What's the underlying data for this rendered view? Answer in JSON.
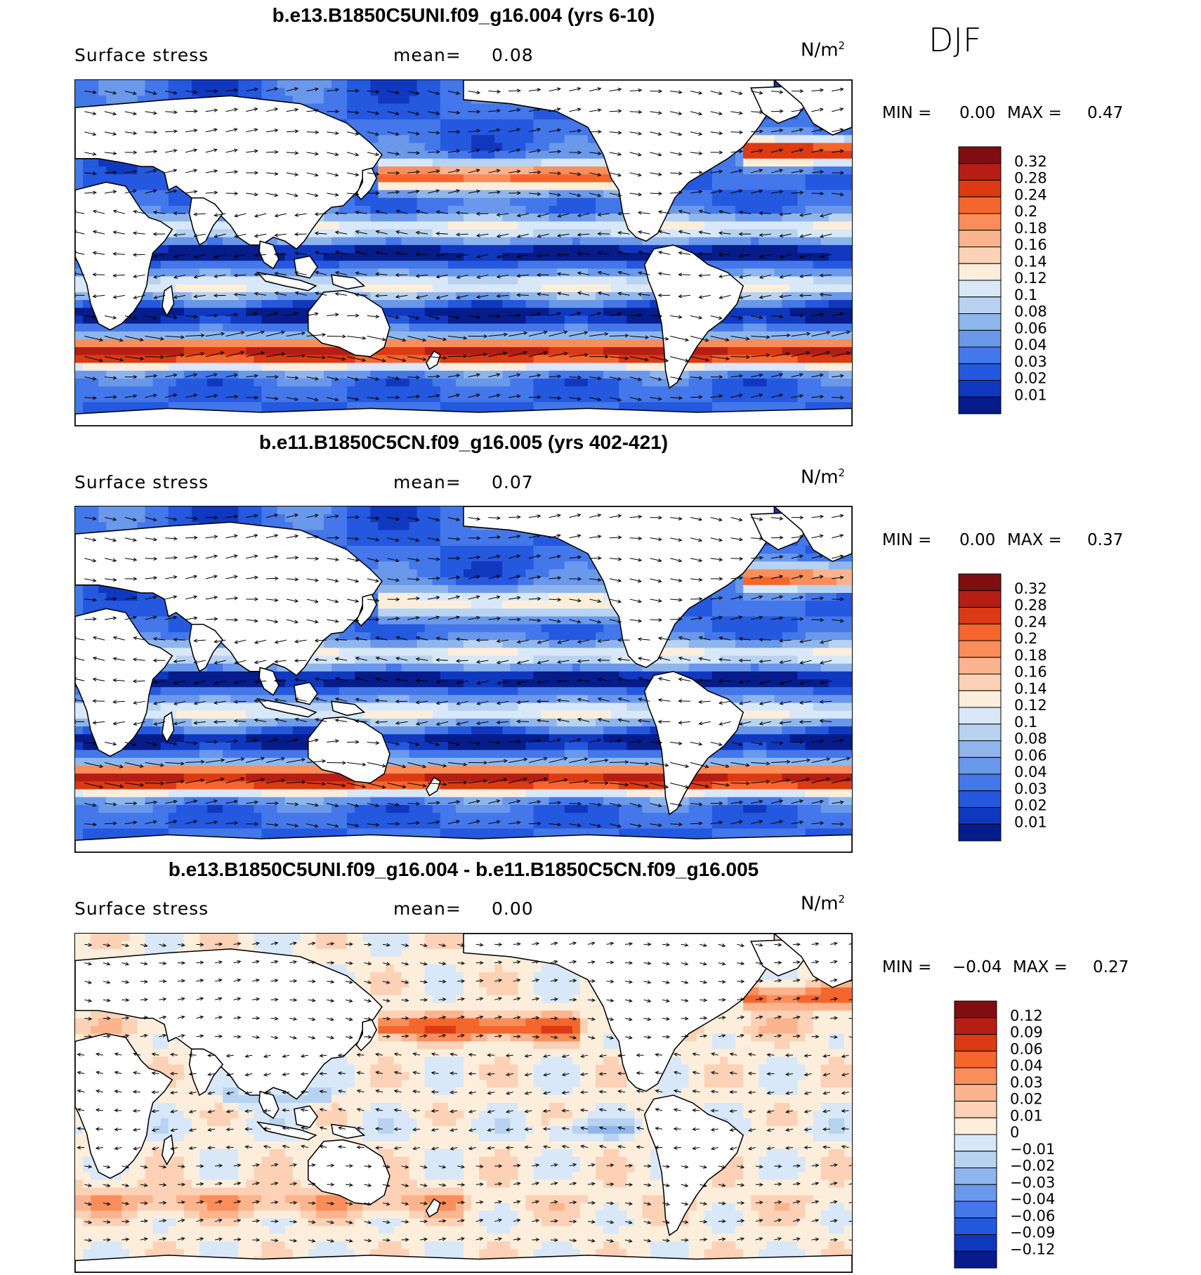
{
  "season": "DJF",
  "panels": [
    {
      "title": "b.e13.B1850C5UNI.f09_g16.004 (yrs 6-10)",
      "variable": "Surface stress",
      "mean_label": "mean=",
      "mean_value": "0.08",
      "units": "N/m",
      "units_sup": "2",
      "min_label": "MIN =",
      "min_value": "0.00",
      "max_label": "MAX =",
      "max_value": "0.47",
      "colorbar": {
        "labels": [
          "0.32",
          "0.28",
          "0.24",
          "0.2",
          "0.18",
          "0.16",
          "0.14",
          "0.12",
          "0.1",
          "0.08",
          "0.06",
          "0.04",
          "0.03",
          "0.02",
          "0.01"
        ],
        "colors": [
          "#800d10",
          "#b51e14",
          "#dc3a13",
          "#f4662d",
          "#f98e5b",
          "#fbb48e",
          "#fdd1b5",
          "#fdeedc",
          "#d8e8f8",
          "#b8d2f1",
          "#8fb6ec",
          "#6a98ea",
          "#4377ea",
          "#2458df",
          "#1038bf",
          "#051c8a"
        ]
      },
      "field": "mean_state"
    },
    {
      "title": "b.e11.B1850C5CN.f09_g16.005 (yrs 402-421)",
      "variable": "Surface stress",
      "mean_label": "mean=",
      "mean_value": "0.07",
      "units": "N/m",
      "units_sup": "2",
      "min_label": "MIN =",
      "min_value": "0.00",
      "max_label": "MAX =",
      "max_value": "0.37",
      "colorbar": {
        "labels": [
          "0.32",
          "0.28",
          "0.24",
          "0.2",
          "0.18",
          "0.16",
          "0.14",
          "0.12",
          "0.1",
          "0.08",
          "0.06",
          "0.04",
          "0.03",
          "0.02",
          "0.01"
        ],
        "colors": [
          "#800d10",
          "#b51e14",
          "#dc3a13",
          "#f4662d",
          "#f98e5b",
          "#fbb48e",
          "#fdd1b5",
          "#fdeedc",
          "#d8e8f8",
          "#b8d2f1",
          "#8fb6ec",
          "#6a98ea",
          "#4377ea",
          "#2458df",
          "#1038bf",
          "#051c8a"
        ]
      },
      "field": "mean_state"
    },
    {
      "title": "b.e13.B1850C5UNI.f09_g16.004 - b.e11.B1850C5CN.f09_g16.005",
      "variable": "Surface stress",
      "mean_label": "mean=",
      "mean_value": "0.00",
      "units": "N/m",
      "units_sup": "2",
      "min_label": "MIN =",
      "min_value": "−0.04",
      "max_label": "MAX =",
      "max_value": "0.27",
      "colorbar": {
        "labels": [
          "0.12",
          "0.09",
          "0.06",
          "0.04",
          "0.03",
          "0.02",
          "0.01",
          "0",
          "−0.01",
          "−0.02",
          "−0.03",
          "−0.04",
          "−0.06",
          "−0.09",
          "−0.12"
        ],
        "colors": [
          "#800d10",
          "#b51e14",
          "#dc3a13",
          "#f4662d",
          "#f98e5b",
          "#fbb48e",
          "#fdd1b5",
          "#fdeedc",
          "#d8e8f8",
          "#b8d2f1",
          "#8fb6ec",
          "#6a98ea",
          "#4377ea",
          "#2458df",
          "#1038bf",
          "#051c8a"
        ]
      },
      "field": "difference"
    }
  ]
}
